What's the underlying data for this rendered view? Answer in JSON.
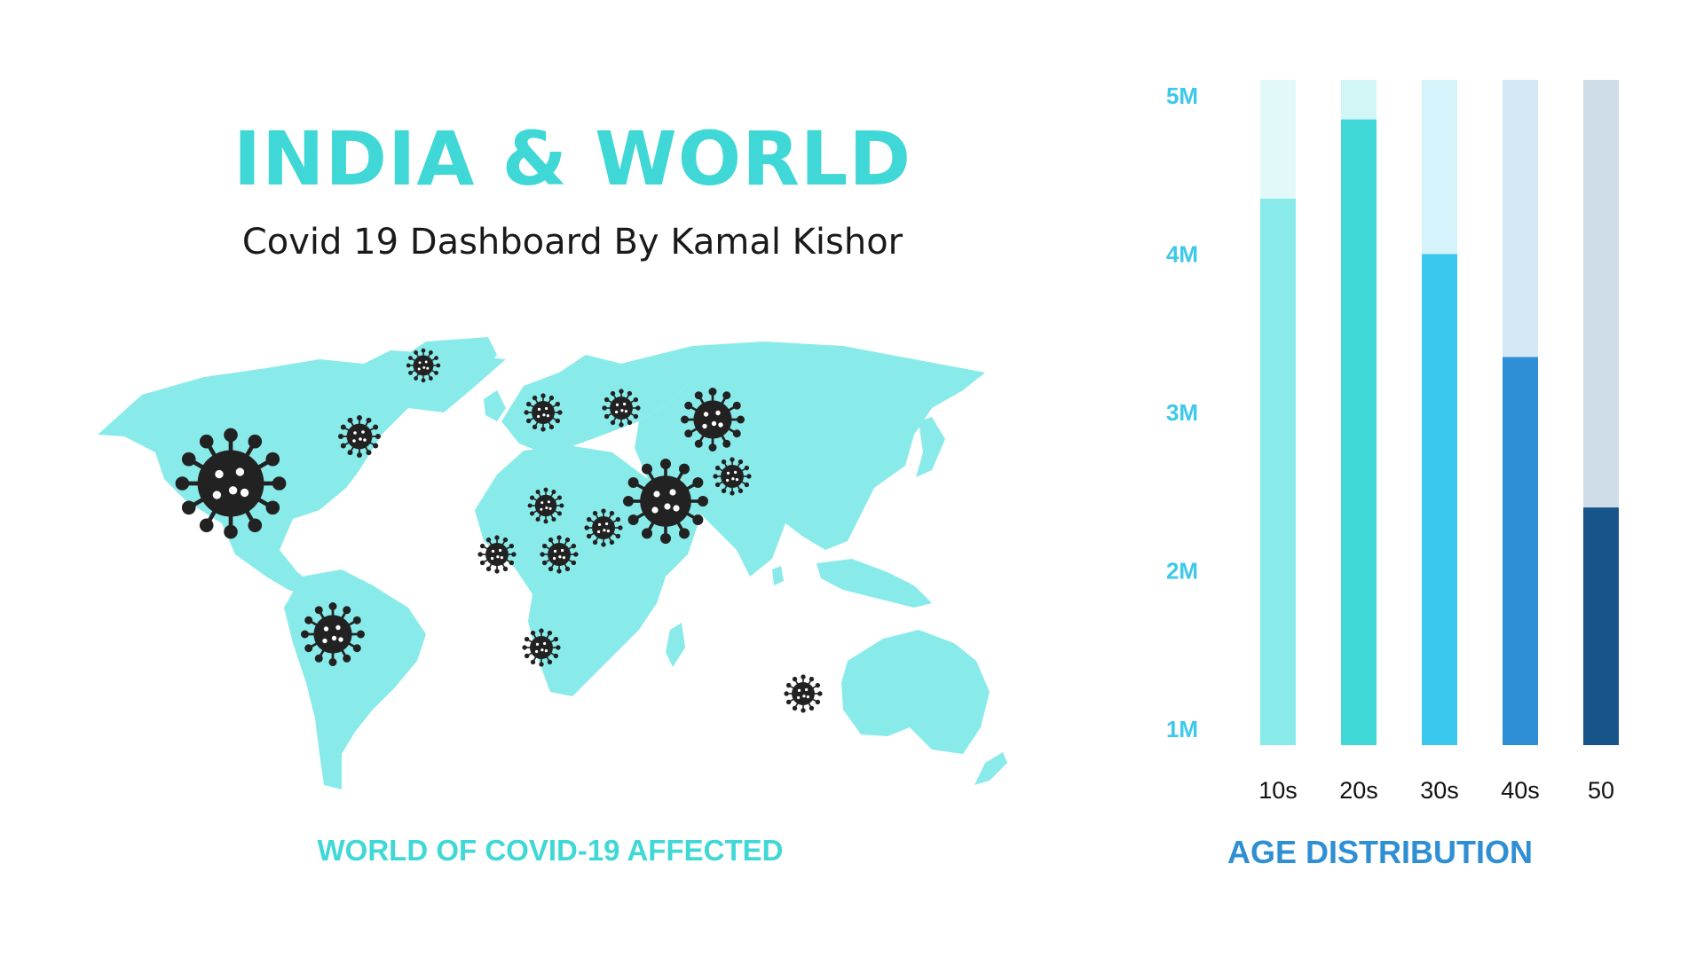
{
  "header": {
    "title": "INDIA & WORLD",
    "subtitle": "Covid 19 Dashboard By Kamal Kishor"
  },
  "map": {
    "caption": "WORLD OF  COVID-19 AFFECTED",
    "land_color": "#88ebea",
    "virus_color": "#222222",
    "icon": "virus-icon"
  },
  "chart_caption": "AGE DISTRIBUTION",
  "chart_data": {
    "type": "bar",
    "categories": [
      "10s",
      "20s",
      "30s",
      "40s",
      "50"
    ],
    "values": [
      4.35,
      4.85,
      4.0,
      3.35,
      2.4
    ],
    "y_ticks": [
      "1M",
      "2M",
      "3M",
      "4M",
      "5M"
    ],
    "y_tick_values": [
      1,
      2,
      3,
      4,
      5
    ],
    "ylim": [
      0.9,
      5.1
    ],
    "grid": false,
    "legend": "none",
    "colors": [
      "#88ebea",
      "#3fd8d6",
      "#3ac8ef",
      "#2e8fd6",
      "#16548a"
    ],
    "track_colors": [
      "#e2f9f9",
      "#d2f5f5",
      "#d4f3fb",
      "#d5e8f6",
      "#cfdde8"
    ]
  }
}
